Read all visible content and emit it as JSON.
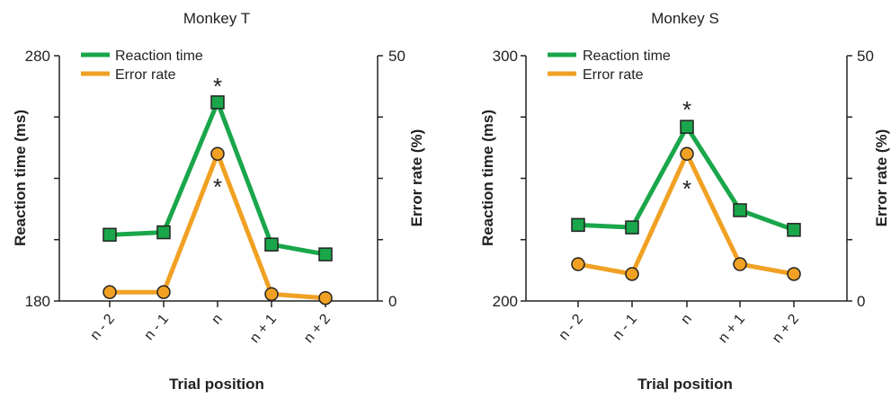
{
  "colors": {
    "reaction_time": "#1aa64a",
    "error_rate": "#f0a123",
    "axis": "#222222"
  },
  "chart_data": [
    {
      "type": "line",
      "title": "Monkey T",
      "categories": [
        "n - 2",
        "n - 1",
        "n",
        "n + 1",
        "n + 2"
      ],
      "xlabel": "Trial position",
      "ylabel_left": "Reaction time (ms)",
      "ylabel_right": "Error rate (%)",
      "ylim_left": [
        180,
        280
      ],
      "ylim_right": [
        0,
        50
      ],
      "left_tick_labels": [
        "280",
        "180"
      ],
      "right_tick_labels": [
        "50",
        "0"
      ],
      "legend_position": "top-left",
      "grid": false,
      "series": [
        {
          "name": "Reaction time",
          "axis": "left",
          "marker": "square",
          "color": "#1aa64a",
          "values": [
            207,
            208,
            261,
            203,
            199
          ]
        },
        {
          "name": "Error rate",
          "axis": "right",
          "marker": "circle",
          "color": "#f0a123",
          "values": [
            1.8,
            1.8,
            30,
            1.4,
            0.6
          ]
        }
      ],
      "annotations": [
        {
          "text": "*",
          "category": "n",
          "series": "Reaction time",
          "position": "above"
        },
        {
          "text": "*",
          "category": "n",
          "series": "Error rate",
          "position": "below"
        }
      ]
    },
    {
      "type": "line",
      "title": "Monkey S",
      "categories": [
        "n - 2",
        "n - 1",
        "n",
        "n + 1",
        "n + 2"
      ],
      "xlabel": "Trial position",
      "ylabel_left": "Reaction time (ms)",
      "ylabel_right": "Error rate (%)",
      "ylim_left": [
        200,
        300
      ],
      "ylim_right": [
        0,
        50
      ],
      "left_tick_labels": [
        "300",
        "200"
      ],
      "right_tick_labels": [
        "50",
        "0"
      ],
      "legend_position": "top-left",
      "grid": false,
      "series": [
        {
          "name": "Reaction time",
          "axis": "left",
          "marker": "square",
          "color": "#1aa64a",
          "values": [
            231,
            230,
            271,
            237,
            229
          ]
        },
        {
          "name": "Error rate",
          "axis": "right",
          "marker": "circle",
          "color": "#f0a123",
          "values": [
            7.5,
            5.5,
            30,
            7.5,
            5.5
          ]
        }
      ],
      "annotations": [
        {
          "text": "*",
          "category": "n",
          "series": "Reaction time",
          "position": "above"
        },
        {
          "text": "*",
          "category": "n",
          "series": "Error rate",
          "position": "below"
        }
      ]
    }
  ]
}
